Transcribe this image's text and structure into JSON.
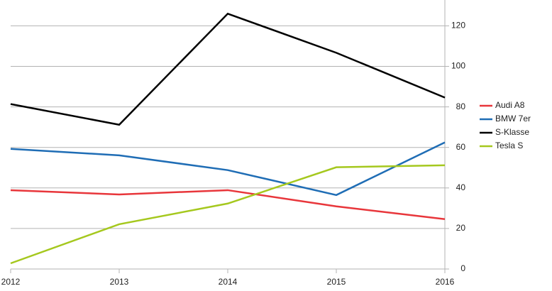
{
  "chart_data": {
    "type": "line",
    "categories": [
      "2012",
      "2013",
      "2014",
      "2015",
      "2016"
    ],
    "series": [
      {
        "name": "Audi A8",
        "color": "#e8363b",
        "values": [
          38.9,
          36.8,
          38.9,
          30.9,
          24.6
        ]
      },
      {
        "name": "BMW 7er",
        "color": "#1f6db5",
        "values": [
          59.3,
          56.1,
          48.8,
          36.5,
          62.5
        ]
      },
      {
        "name": "S-Klasse",
        "color": "#000000",
        "values": [
          81.4,
          71.2,
          126,
          106.7,
          84.6
        ]
      },
      {
        "name": "Tesla S",
        "color": "#a5c81e",
        "values": [
          2.8,
          22.1,
          32.3,
          50.2,
          51.2
        ]
      }
    ],
    "ylim": [
      0,
      131
    ],
    "yticks": [
      0,
      20,
      40,
      60,
      80,
      100,
      120
    ],
    "grid": true,
    "y_axis_side": "right",
    "legend": "right"
  }
}
